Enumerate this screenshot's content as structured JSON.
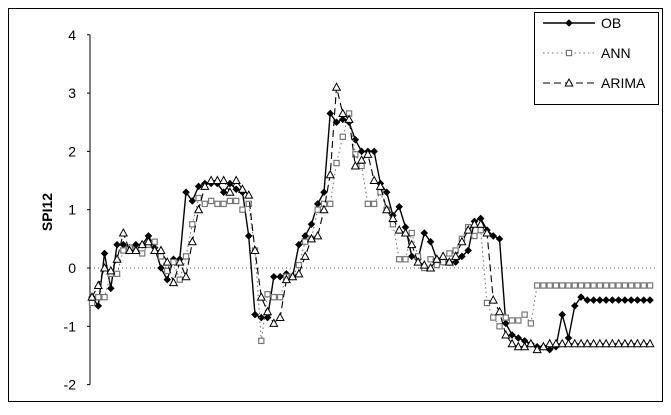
{
  "chart_data": {
    "type": "line",
    "ylabel": "SPI12",
    "xlabel": "",
    "ylim": [
      -2,
      4
    ],
    "yticks": [
      "-2",
      "-1",
      "0",
      "1",
      "2",
      "3",
      "4"
    ],
    "legend_placement": "top-right",
    "grid": false,
    "x": [
      1,
      2,
      3,
      4,
      5,
      6,
      7,
      8,
      9,
      10,
      11,
      12,
      13,
      14,
      15,
      16,
      17,
      18,
      19,
      20,
      21,
      22,
      23,
      24,
      25,
      26,
      27,
      28,
      29,
      30,
      31,
      32,
      33,
      34,
      35,
      36,
      37,
      38,
      39,
      40,
      41,
      42,
      43,
      44,
      45,
      46,
      47,
      48,
      49,
      50,
      51,
      52,
      53,
      54,
      55,
      56,
      57,
      58,
      59,
      60,
      61,
      62,
      63,
      64,
      65,
      66,
      67,
      68,
      69,
      70,
      71,
      72,
      73,
      74,
      75,
      76,
      77,
      78,
      79,
      80,
      81,
      82,
      83,
      84,
      85,
      86,
      87,
      88,
      89,
      90
    ],
    "series": [
      {
        "name": "OB",
        "style": "solid",
        "marker": "diamond",
        "color": "#000000",
        "values": [
          -0.5,
          -0.65,
          0.25,
          -0.35,
          0.4,
          0.4,
          0.35,
          0.4,
          0.4,
          0.55,
          0.35,
          0.0,
          -0.2,
          0.15,
          0.15,
          1.3,
          1.15,
          1.4,
          1.45,
          1.45,
          1.45,
          1.3,
          1.45,
          1.35,
          1.3,
          0.55,
          -0.8,
          -0.85,
          -0.85,
          -0.15,
          -0.15,
          -0.1,
          -0.15,
          0.4,
          0.55,
          0.75,
          1.1,
          1.3,
          2.65,
          2.5,
          2.55,
          2.5,
          2.2,
          2.0,
          2.0,
          2.0,
          1.45,
          1.3,
          0.9,
          1.05,
          0.7,
          0.2,
          0.15,
          0.6,
          0.45,
          0.15,
          0.1,
          0.1,
          0.1,
          0.2,
          0.3,
          0.8,
          0.85,
          0.65,
          0.55,
          0.5,
          -0.95,
          -1.15,
          -1.2,
          -1.25,
          -1.3,
          -1.35,
          -1.35,
          -1.4,
          -1.35,
          -0.8,
          -1.2,
          -0.65,
          -0.5,
          -0.55,
          -0.55,
          -0.55,
          -0.55,
          -0.55,
          -0.55,
          -0.55,
          -0.55,
          -0.55,
          -0.55,
          -0.55
        ]
      },
      {
        "name": "ANN",
        "style": "dotted",
        "marker": "square",
        "color": "#777777",
        "values": [
          -0.6,
          -0.5,
          -0.5,
          -0.1,
          -0.1,
          0.3,
          0.35,
          0.3,
          0.25,
          0.4,
          0.45,
          0.2,
          -0.05,
          0.1,
          -0.2,
          0.2,
          0.75,
          1.2,
          1.1,
          1.15,
          1.1,
          1.1,
          1.15,
          1.15,
          1.0,
          1.1,
          0.3,
          -1.25,
          -0.45,
          -0.5,
          -0.5,
          -0.15,
          -0.15,
          0.05,
          0.45,
          0.5,
          1.0,
          1.1,
          1.1,
          1.8,
          2.25,
          2.65,
          1.95,
          1.75,
          1.1,
          1.1,
          1.3,
          1.0,
          0.75,
          0.15,
          0.15,
          0.6,
          0.2,
          0.0,
          0.15,
          0.05,
          0.1,
          0.25,
          0.3,
          0.5,
          0.7,
          0.55,
          0.65,
          -0.6,
          -0.85,
          -1.0,
          -0.85,
          -0.9,
          -0.9,
          -0.8,
          -0.95,
          -0.3,
          -0.3,
          -0.3,
          -0.3,
          -0.3,
          -0.3,
          -0.3,
          -0.3,
          -0.3,
          -0.3,
          -0.3,
          -0.3,
          -0.3,
          -0.3,
          -0.3,
          -0.3,
          -0.3,
          -0.3,
          -0.3
        ]
      },
      {
        "name": "ARIMA",
        "style": "dashed",
        "marker": "triangle",
        "color": "#000000",
        "values": [
          -0.5,
          -0.3,
          0.0,
          -0.05,
          0.15,
          0.6,
          0.3,
          0.3,
          0.4,
          0.45,
          0.3,
          0.3,
          0.1,
          -0.25,
          0.1,
          -0.15,
          0.45,
          1.0,
          1.4,
          1.5,
          1.5,
          1.5,
          1.3,
          1.5,
          1.35,
          1.25,
          0.3,
          -0.5,
          -0.75,
          -0.95,
          -0.85,
          -0.2,
          -0.15,
          -0.1,
          0.2,
          0.5,
          0.55,
          1.0,
          1.6,
          3.1,
          2.65,
          2.55,
          1.75,
          1.85,
          1.95,
          1.5,
          1.4,
          1.0,
          0.85,
          0.65,
          0.6,
          0.4,
          0.1,
          0.05,
          0.0,
          0.15,
          0.2,
          0.1,
          0.2,
          0.45,
          0.65,
          0.75,
          0.75,
          0.6,
          -0.55,
          -0.75,
          -1.15,
          -1.3,
          -1.35,
          -1.35,
          -1.3,
          -1.4,
          -1.35,
          -1.3,
          -1.3,
          -1.3,
          -1.3,
          -1.3,
          -1.3,
          -1.3,
          -1.3,
          -1.3,
          -1.3,
          -1.3,
          -1.3,
          -1.3,
          -1.3,
          -1.3,
          -1.3,
          -1.3
        ]
      }
    ]
  }
}
